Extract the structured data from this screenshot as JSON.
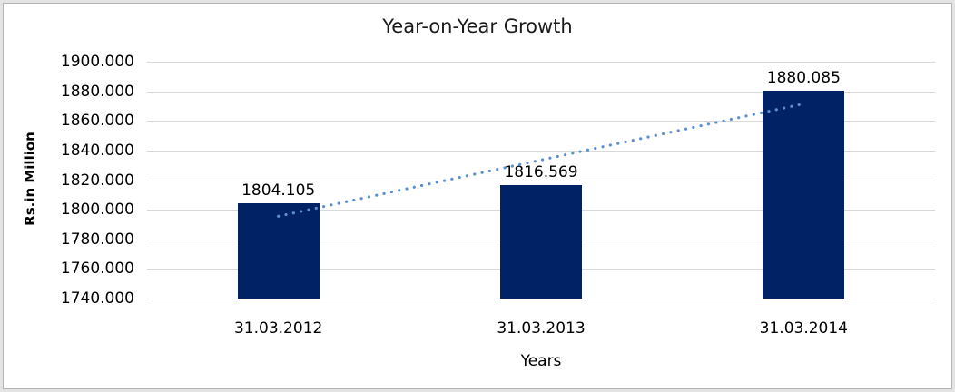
{
  "chart_data": {
    "type": "bar",
    "title": "Year-on-Year Growth",
    "xlabel": "Years",
    "ylabel": "Rs.in Million",
    "categories": [
      "31.03.2012",
      "31.03.2013",
      "31.03.2014"
    ],
    "values": [
      1804.105,
      1816.569,
      1880.085
    ],
    "data_labels": [
      "1804.105",
      "1816.569",
      "1880.085"
    ],
    "y_ticks": [
      "1900.000",
      "1880.000",
      "1860.000",
      "1840.000",
      "1820.000",
      "1800.000",
      "1780.000",
      "1760.000",
      "1740.000"
    ],
    "ylim": [
      1740,
      1900
    ],
    "y_step": 20,
    "grid": true,
    "legend": "none",
    "bar_color": "#022266",
    "gridline_color": "#d9d9d9",
    "trendline": {
      "type": "linear",
      "style": "dotted",
      "color": "#5b8fd2"
    }
  }
}
